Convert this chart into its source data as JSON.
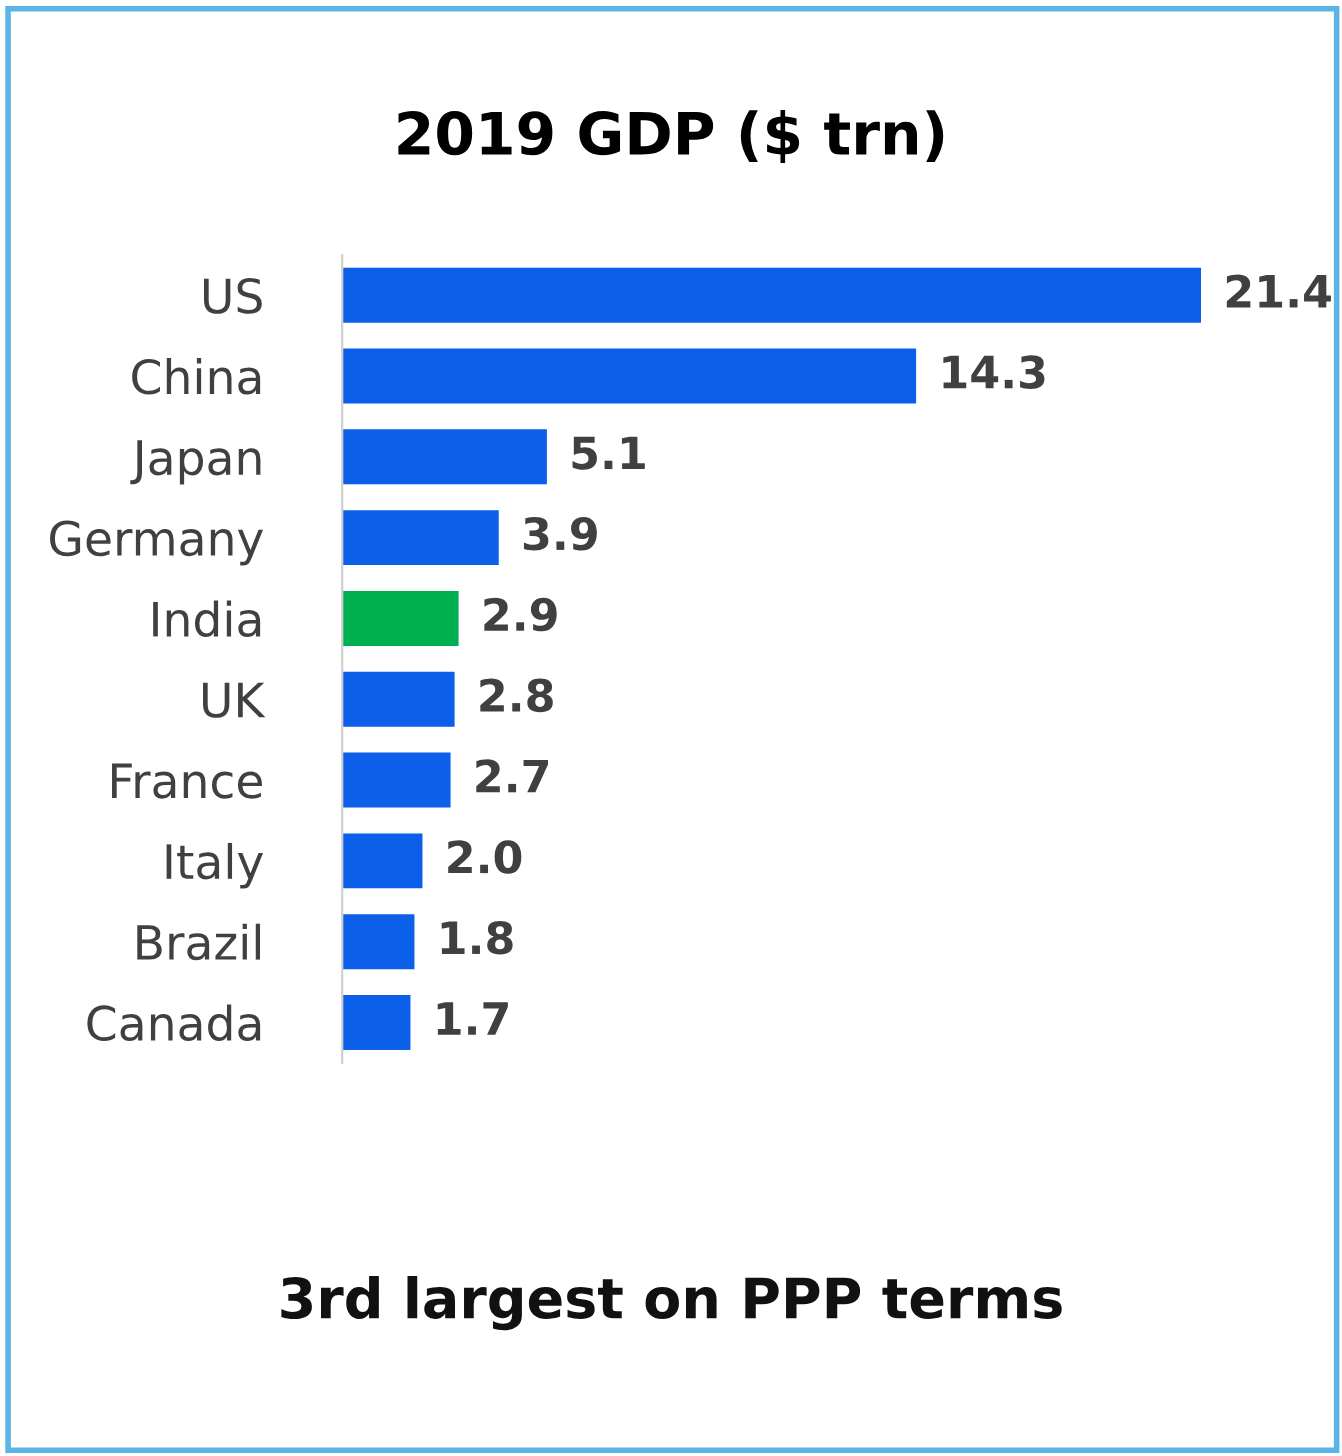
{
  "chart_data": {
    "type": "bar",
    "orientation": "horizontal",
    "title": "2019 GDP ($ trn)",
    "categories": [
      "US",
      "China",
      "Japan",
      "Germany",
      "India",
      "UK",
      "France",
      "Italy",
      "Brazil",
      "Canada"
    ],
    "values": [
      21.4,
      14.3,
      5.1,
      3.9,
      2.9,
      2.8,
      2.7,
      2.0,
      1.8,
      1.7
    ],
    "colors": [
      "#0b5fe8",
      "#0b5fe8",
      "#0b5fe8",
      "#0b5fe8",
      "#00b050",
      "#0b5fe8",
      "#0b5fe8",
      "#0b5fe8",
      "#0b5fe8",
      "#0b5fe8"
    ],
    "value_labels": [
      "21.4",
      "14.3",
      "5.1",
      "3.9",
      "2.9",
      "2.8",
      "2.7",
      "2.0",
      "1.8",
      "1.7"
    ],
    "annotations": [
      "3rd largest on PPP terms"
    ]
  }
}
